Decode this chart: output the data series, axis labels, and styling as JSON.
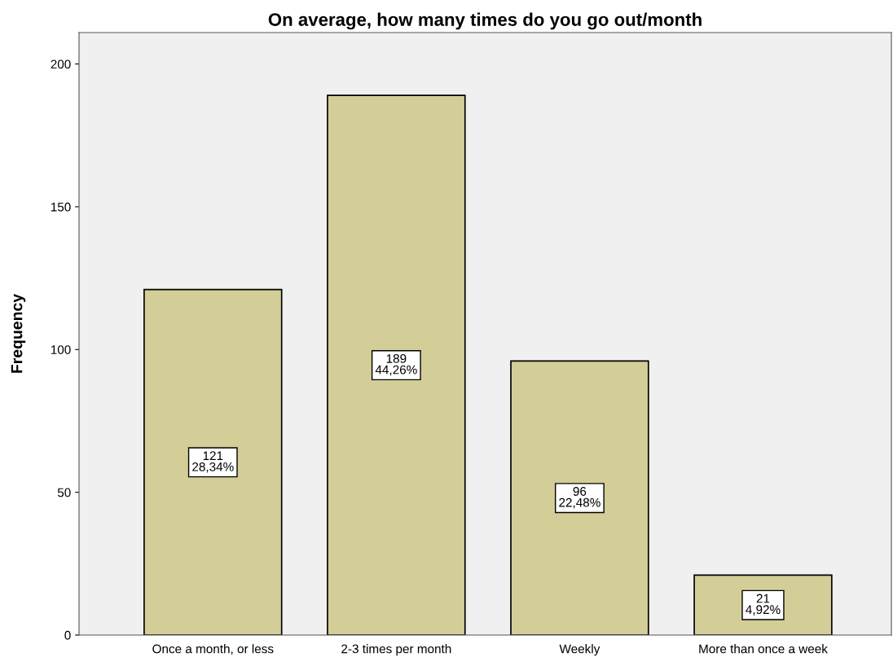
{
  "chart_data": {
    "type": "bar",
    "title": "On average, how many times do you go out/month",
    "ylabel": "Frequency",
    "categories": [
      "Once a month, or less",
      "2-3 times per month",
      "Weekly",
      "More than once a week"
    ],
    "values": [
      121,
      189,
      96,
      21
    ],
    "value_labels": [
      "121\n28,34%",
      "189\n44,26%",
      "96\n22,48%",
      "21\n4,92%"
    ],
    "color": "#d3ce97",
    "ylim": [
      0,
      211
    ],
    "yticks": [
      0,
      50,
      100,
      150,
      200
    ],
    "grid": false,
    "legend": false
  }
}
